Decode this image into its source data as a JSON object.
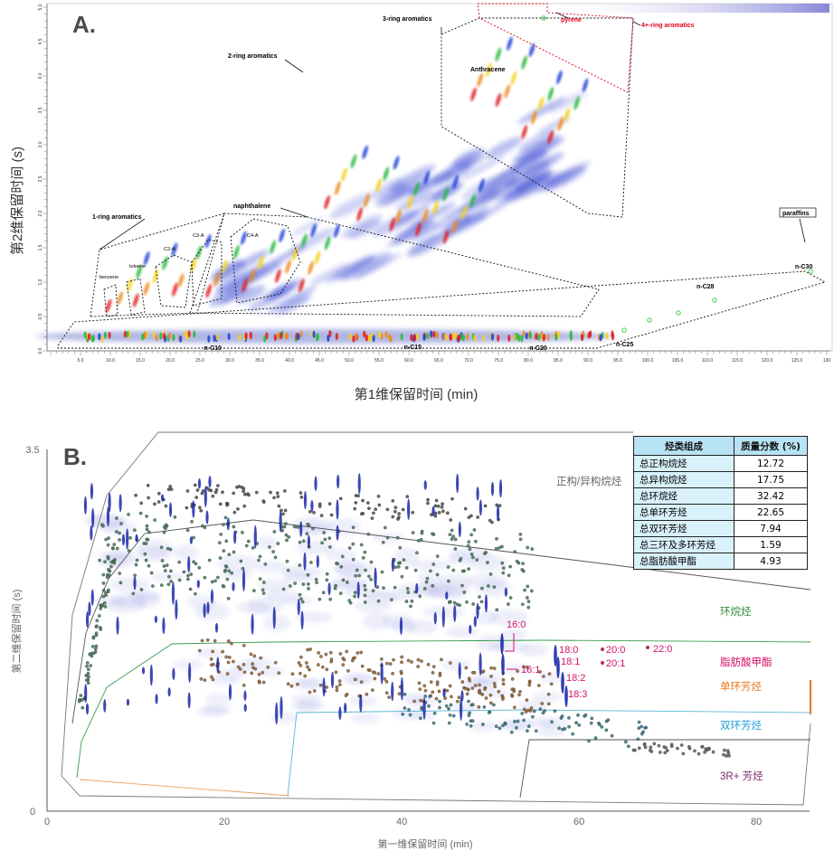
{
  "chart_data": [
    {
      "type": "heatmap",
      "panel_label": "A.",
      "xlabel": "第1维保留时间 (min)",
      "ylabel": "第2维保留时间 (s)",
      "xlim": [
        0,
        130
      ],
      "ylim": [
        0,
        5
      ],
      "x_ticks": [
        "5.0",
        "10.0",
        "15.0",
        "20.0",
        "25.0",
        "30.0",
        "35.0",
        "40.0",
        "45.0",
        "50.0",
        "55.0",
        "60.0",
        "65.0",
        "70.0",
        "75.0",
        "80.0",
        "85.0",
        "90.0",
        "95.0",
        "100.0",
        "105.0",
        "110.0",
        "115.0",
        "120.0",
        "125.0",
        "130"
      ],
      "region_labels": [
        {
          "text": "3-ring aromatics",
          "color": "#000000"
        },
        {
          "text": "pyrene",
          "color": "#e0001b"
        },
        {
          "text": "4+-ring aromatics",
          "color": "#e0001b"
        },
        {
          "text": "2-ring aromatics",
          "color": "#000000"
        },
        {
          "text": "Anthracene",
          "color": "#000000"
        },
        {
          "text": "1-ring aromatics",
          "color": "#000000"
        },
        {
          "text": "naphthalene",
          "color": "#000000"
        },
        {
          "text": "paraffins",
          "color": "#000000"
        },
        {
          "text": "benzene",
          "color": "#000000"
        },
        {
          "text": "toluene",
          "color": "#000000"
        },
        {
          "text": "C2-A",
          "color": "#000000"
        },
        {
          "text": "C3-A",
          "color": "#000000"
        },
        {
          "text": "C4-A",
          "color": "#000000"
        }
      ],
      "alkane_labels": [
        {
          "text": "n-C10",
          "x": 27.5
        },
        {
          "text": "n-C15",
          "x": 61
        },
        {
          "text": "n-C20",
          "x": 82
        },
        {
          "text": "n-C25",
          "x": 96.5
        },
        {
          "text": "n-C28",
          "x": 110
        },
        {
          "text": "n-C30",
          "x": 126.5
        }
      ]
    },
    {
      "type": "scatter",
      "panel_label": "B.",
      "xlabel": "第一维保留时间 (min)",
      "ylabel": "第二维保留时间 (s)",
      "xlim": [
        0,
        86
      ],
      "ylim": [
        0,
        3.5
      ],
      "x_ticks": [
        "0",
        "20",
        "40",
        "60",
        "80"
      ],
      "y_ticks": [
        "0",
        "3.5"
      ],
      "region_labels": [
        {
          "text": "正构/异构烷烃",
          "color": "#666666"
        },
        {
          "text": "环烷烃",
          "color": "#2e8b3c"
        },
        {
          "text": "脂肪酸甲酯",
          "color": "#d4126a"
        },
        {
          "text": "单环芳烃",
          "color": "#e87820"
        },
        {
          "text": "双环芳烃",
          "color": "#1f9fd8"
        },
        {
          "text": "3R+ 芳烃",
          "color": "#7a2a6a"
        }
      ],
      "fame_labels": [
        "16:0",
        "16:1",
        "18:0",
        "18:1",
        "18:2",
        "18:3",
        "20:0",
        "20:1",
        "22:0"
      ],
      "table": {
        "headers": [
          "烃类组成",
          "质量分数 (%)"
        ],
        "rows": [
          {
            "name": "总正构烷烃",
            "value": "12.72"
          },
          {
            "name": "总异构烷烃",
            "value": "17.75"
          },
          {
            "name": "总环烷烃",
            "value": "32.42"
          },
          {
            "name": "总单环芳烃",
            "value": "22.65"
          },
          {
            "name": "总双环芳烃",
            "value": "7.94"
          },
          {
            "name": "总三环及多环芳烃",
            "value": "1.59"
          },
          {
            "name": "总脂肪酸甲酯",
            "value": "4.93"
          }
        ]
      }
    }
  ]
}
